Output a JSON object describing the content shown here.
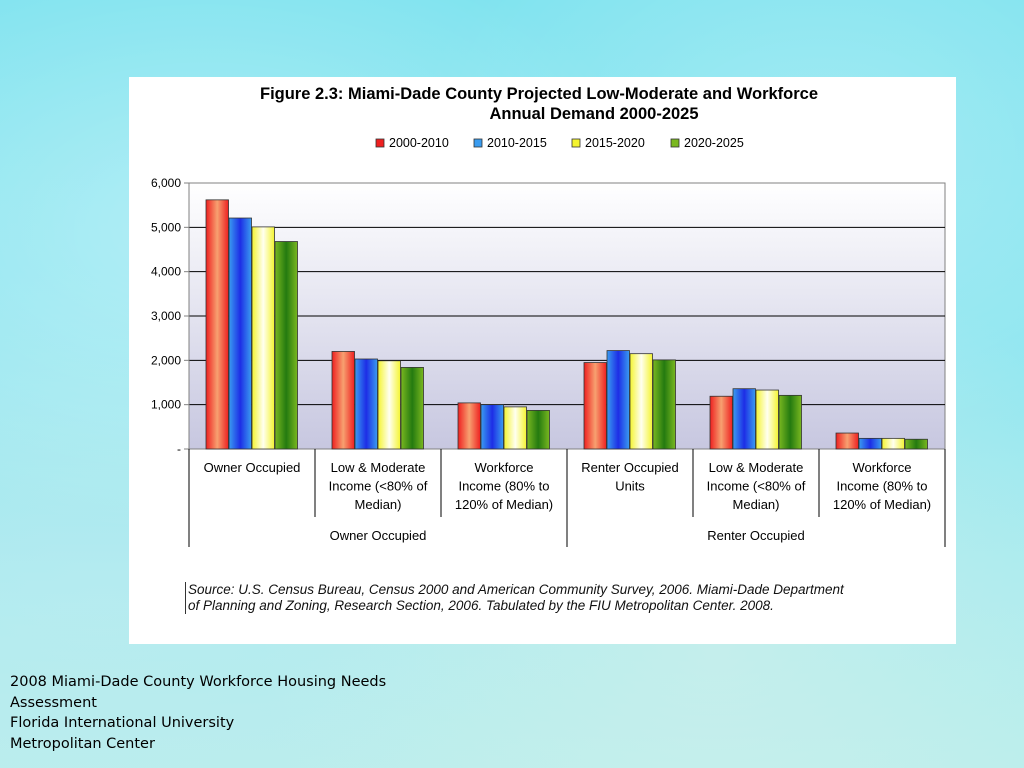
{
  "footer": {
    "line1": "2008 Miami-Dade County Workforce Housing Needs",
    "line2": "Assessment",
    "line3": "Florida International University",
    "line4": "Metropolitan Center"
  },
  "source_note": "Source: U.S. Census Bureau, Census 2000 and American Community Survey, 2006. Miami-Dade Department of Planning and Zoning, Research Section, 2006. Tabulated by the FIU Metropolitan Center. 2008.",
  "chart_data": {
    "type": "bar",
    "title_line1": "Figure 2.3: Miami-Dade County Projected Low-Moderate and Workforce",
    "title_line2": "Annual Demand 2000-2025",
    "legend_position": "top",
    "grid": true,
    "ylim": [
      0,
      6000
    ],
    "y_ticks": [
      {
        "value": 0,
        "label": "-"
      },
      {
        "value": 1000,
        "label": "1,000"
      },
      {
        "value": 2000,
        "label": "2,000"
      },
      {
        "value": 3000,
        "label": "3,000"
      },
      {
        "value": 4000,
        "label": "4,000"
      },
      {
        "value": 5000,
        "label": "5,000"
      },
      {
        "value": 6000,
        "label": "6,000"
      }
    ],
    "categories": [
      [
        "Owner Occupied"
      ],
      [
        "Low & Moderate",
        "Income (<80% of",
        "Median)"
      ],
      [
        "Workforce",
        "Income (80% to",
        "120% of Median)"
      ],
      [
        "Renter Occupied",
        "Units"
      ],
      [
        "Low & Moderate",
        "Income (<80% of",
        "Median)"
      ],
      [
        "Workforce",
        "Income (80% to",
        "120% of Median)"
      ]
    ],
    "groups": [
      {
        "label": "Owner Occupied",
        "span": 3
      },
      {
        "label": "Renter Occupied",
        "span": 3
      }
    ],
    "series": [
      {
        "name": "2000-2010",
        "color": "#ee2020",
        "values": [
          5620,
          2200,
          1040,
          1950,
          1190,
          360
        ]
      },
      {
        "name": "2010-2015",
        "color": "#3a9cf0",
        "values": [
          5210,
          2030,
          1000,
          2220,
          1360,
          240
        ]
      },
      {
        "name": "2015-2020",
        "color": "#f4f430",
        "values": [
          5010,
          1990,
          950,
          2150,
          1330,
          240
        ]
      },
      {
        "name": "2020-2025",
        "color": "#7ab820",
        "values": [
          4680,
          1840,
          870,
          2010,
          1210,
          220
        ]
      }
    ]
  }
}
